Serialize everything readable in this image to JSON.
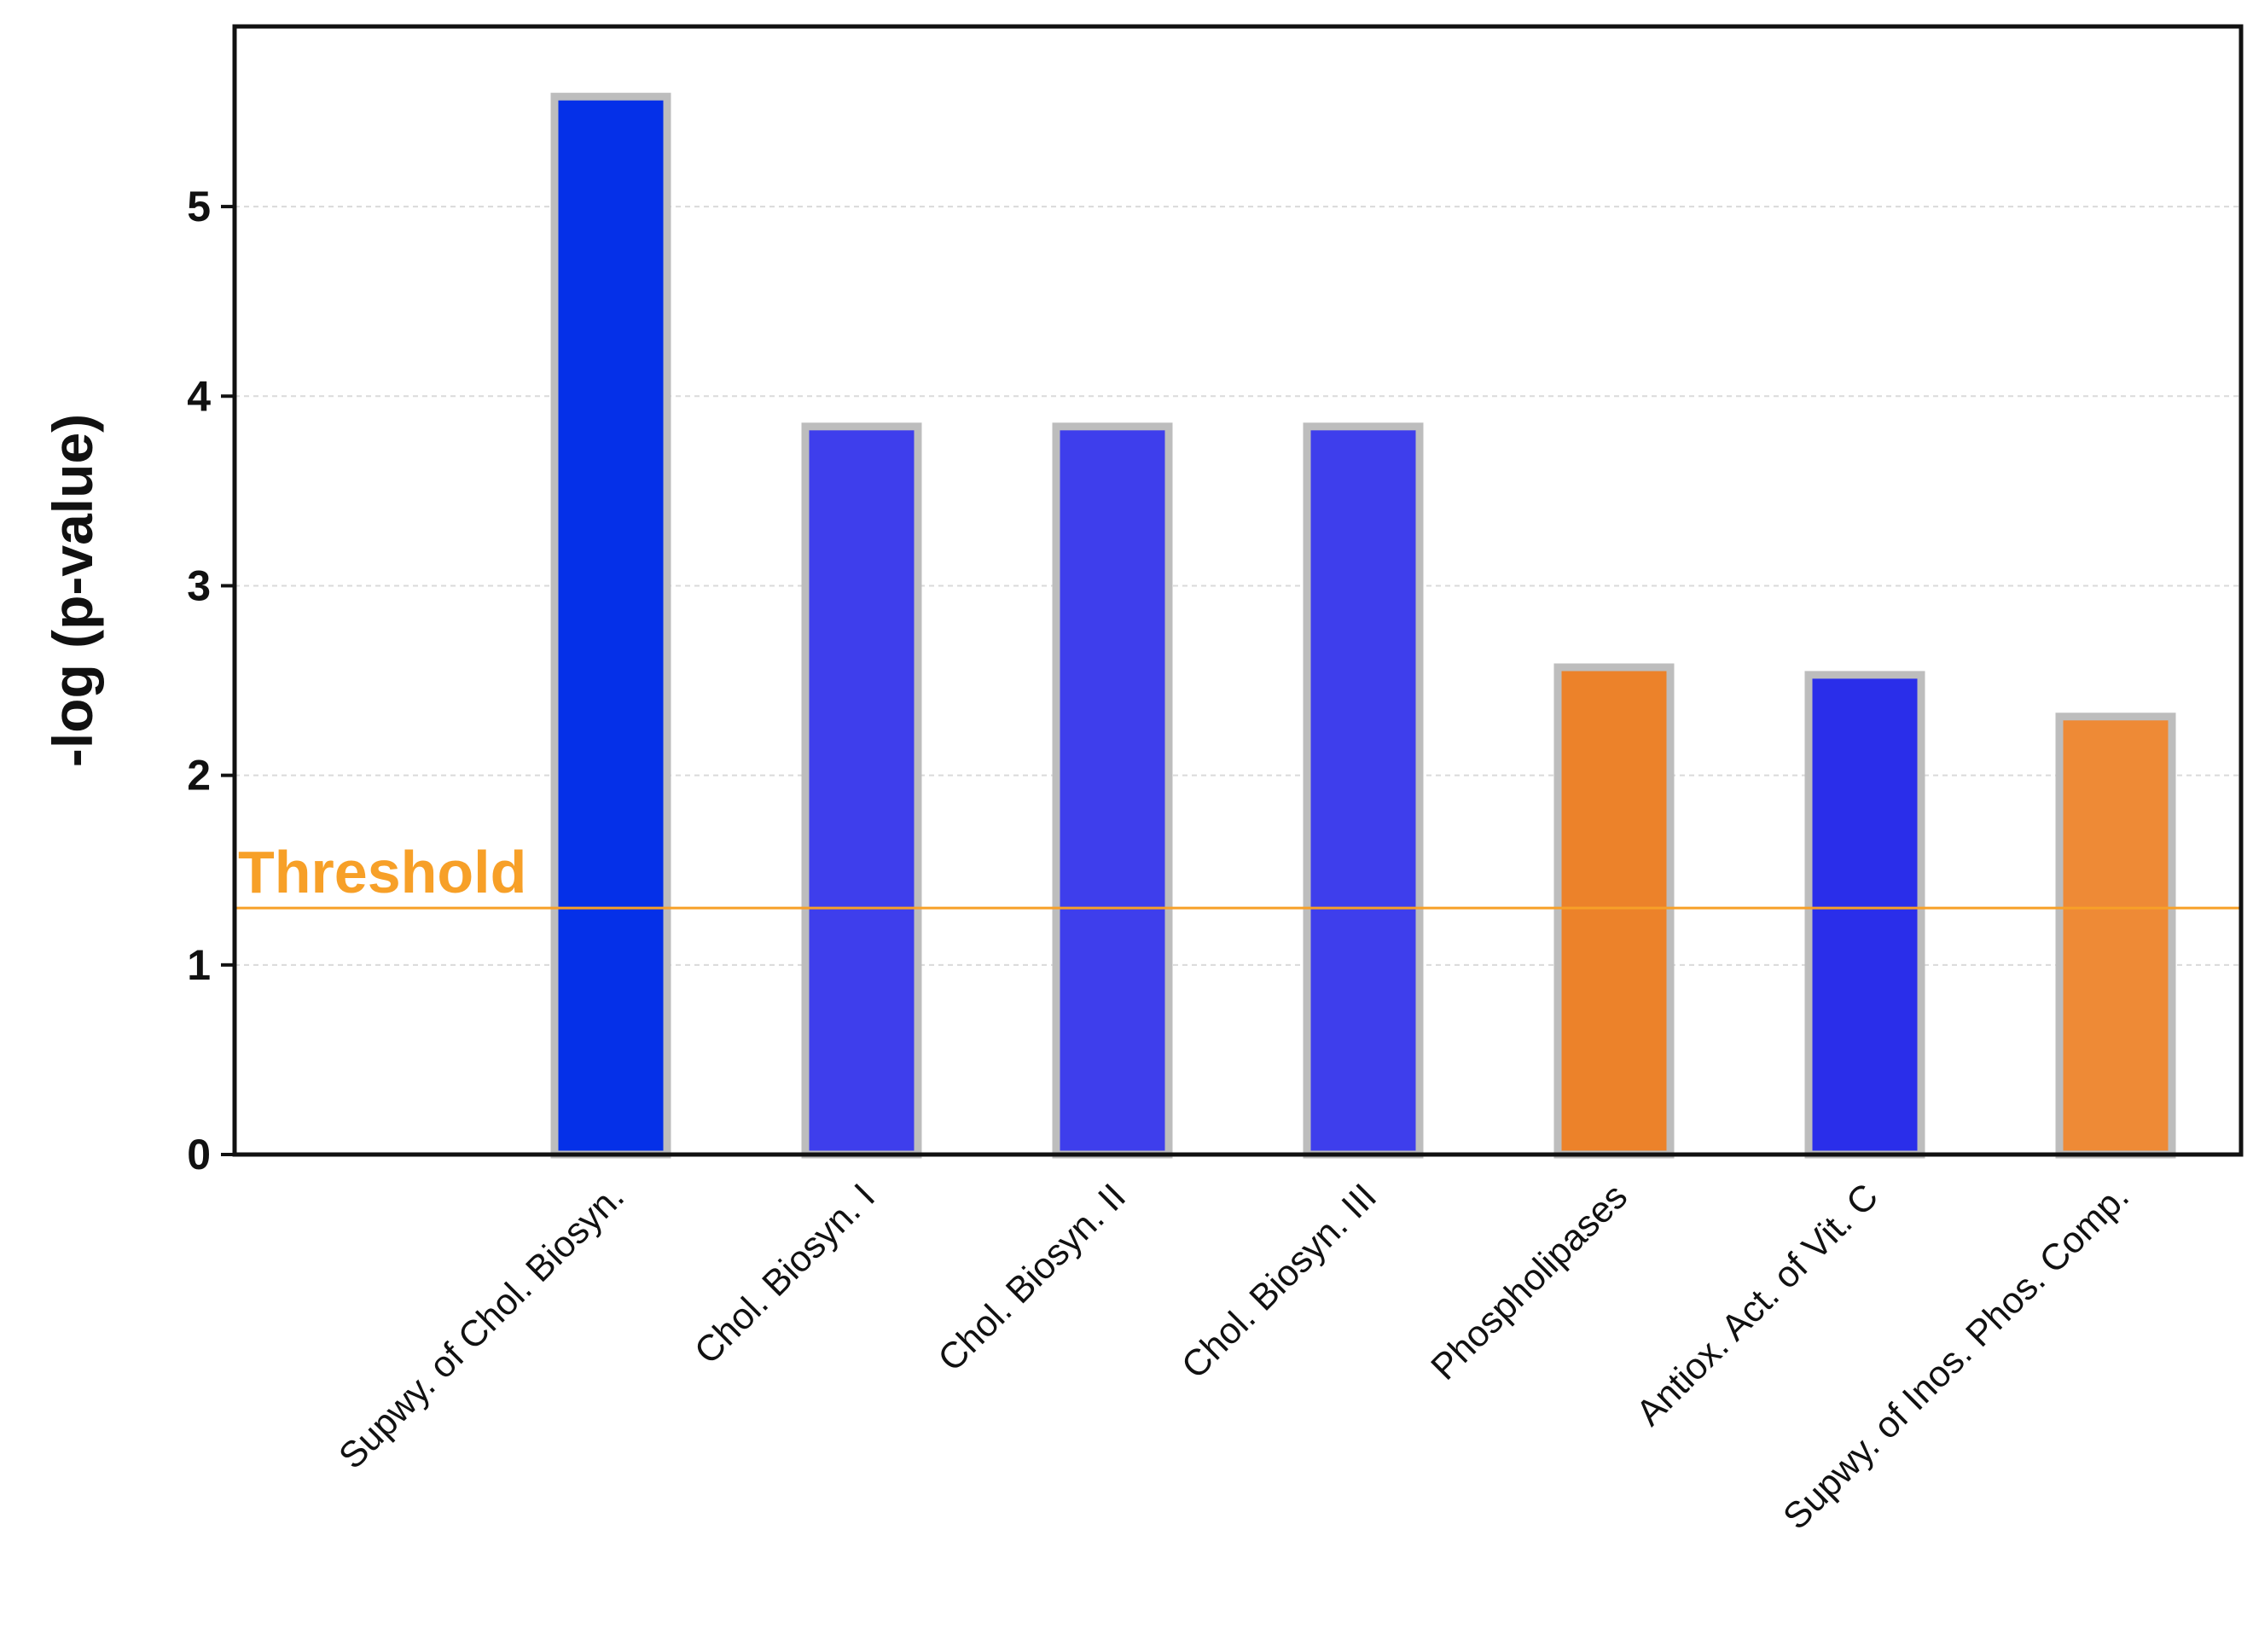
{
  "chart_data": {
    "type": "bar",
    "title": "",
    "xlabel": "",
    "ylabel": "-log (p-value)",
    "ylim": [
      0,
      5.95
    ],
    "yticks": [
      0,
      1,
      2,
      3,
      4,
      5
    ],
    "grid": true,
    "categories": [
      "",
      "Supwy. of Chol. Biosyn.",
      "Chol. Biosyn. I",
      "Chol. Biosyn. II",
      "Chol. Biosyn. III",
      "Phospholipases",
      "Antiox. Act. of Vit. C",
      "Supwy. of Inos. Phos. Comp."
    ],
    "values": [
      null,
      5.58,
      3.84,
      3.84,
      3.84,
      2.57,
      2.53,
      2.31
    ],
    "bar_colors": [
      "",
      "#0530E8",
      "#3E3EEC",
      "#3E3EEC",
      "#3E3EEC",
      "#EC822A",
      "#2A2EEA",
      "#EE8A36"
    ],
    "bar_border_color": "#BDBDBD",
    "threshold": {
      "label": "Threshold",
      "value": 1.3,
      "color": "#F7A028"
    }
  }
}
